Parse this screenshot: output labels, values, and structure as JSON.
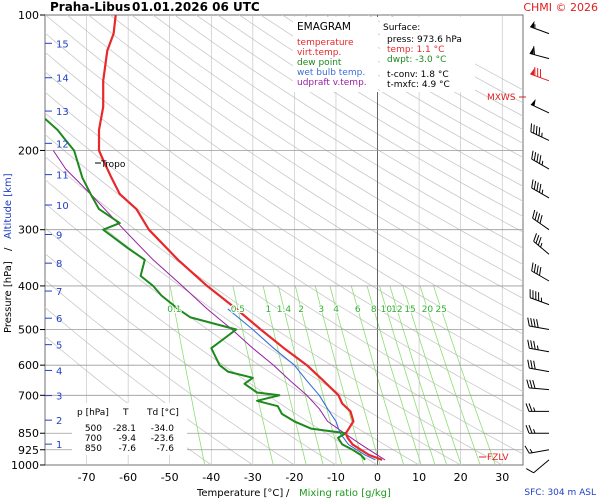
{
  "header": {
    "station": "Praha-Libus",
    "time": "01.01.2026 06 UTC",
    "credit": "CHMI © 2026"
  },
  "legend": {
    "title": "EMAGRAM",
    "items": [
      {
        "label": "temperature",
        "color": "#e8282a"
      },
      {
        "label": "virt.temp.",
        "color": "#e8282a"
      },
      {
        "label": "dew point",
        "color": "#1c8a1c"
      },
      {
        "label": "wet bulb temp.",
        "color": "#3a6fd8"
      },
      {
        "label": "udpraft v.temp.",
        "color": "#9a1ea5"
      }
    ]
  },
  "surface": {
    "title": "Surface:",
    "press": "press: 973.6 hPa",
    "temp": "temp: 1.1 °C",
    "dwpt": "dwpt: -3.0 °C",
    "tconv": "t-conv: 1.8 °C",
    "tmxfc": "t-mxfc: 4.9 °C"
  },
  "table": {
    "headers": [
      "p [hPa]",
      "T",
      "Td [°C]"
    ],
    "rows": [
      [
        "500",
        "-28.1",
        "-34.0"
      ],
      [
        "700",
        "-9.4",
        "-23.6"
      ],
      [
        "850",
        "-7.6",
        "-7.6"
      ]
    ]
  },
  "annotations": {
    "tropo": "Tropo",
    "mxws": "MXWS",
    "fzlv": "FZLV",
    "sfc": "SFC: 304 m ASL"
  },
  "axes": {
    "xlabel_temp": "Temperature [°C]",
    "xlabel_sep": "/",
    "xlabel_mix": "Mixing ratio [g/kg]",
    "ylabel_pressure": "Pressure [hPa]",
    "ylabel_sep": "/",
    "ylabel_alt": "Altitude [km]"
  },
  "colors": {
    "temp": "#e8282a",
    "dew": "#1c8a1c",
    "wetbulb": "#3a6fd8",
    "parcel": "#9a1ea5",
    "mixing": "#8fdd74",
    "dryadiabat": "#c9c9c9",
    "isobar": "#9a9a9a",
    "altitude": "#2040c8",
    "annot": "#e02020"
  },
  "chart_data": {
    "type": "line",
    "title": "EMAGRAM",
    "xlim": [
      -80,
      35
    ],
    "ylim_hPa": [
      1000,
      100
    ],
    "xlabel": "Temperature [°C] / Mixing ratio [g/kg]",
    "ylabel": "Pressure [hPa] / Altitude [km]",
    "x_ticks": [
      -70,
      -60,
      -50,
      -40,
      -30,
      -20,
      -10,
      0,
      10,
      20,
      30
    ],
    "pressure_ticks": [
      100,
      200,
      300,
      400,
      500,
      600,
      700,
      850,
      925,
      1000
    ],
    "altitude_ticks_km": [
      1,
      2,
      3,
      4,
      5,
      6,
      7,
      8,
      9,
      10,
      11,
      12,
      13,
      14,
      15
    ],
    "mixing_ratio_labels": [
      "0.1",
      "0.5",
      "1",
      "1.4",
      "2",
      "3",
      "4",
      "6",
      "8",
      "10",
      "12",
      "15",
      "20",
      "25"
    ],
    "mixing_ratio_values": [
      0.1,
      0.5,
      1,
      1.4,
      2,
      3,
      4,
      6,
      8,
      10,
      12,
      15,
      20,
      25
    ],
    "series": [
      {
        "name": "temperature",
        "points": [
          [
            974,
            1.1
          ],
          [
            950,
            -2
          ],
          [
            925,
            -4
          ],
          [
            900,
            -6
          ],
          [
            870,
            -7.2
          ],
          [
            850,
            -7.6
          ],
          [
            800,
            -5.8
          ],
          [
            760,
            -6.5
          ],
          [
            730,
            -8.5
          ],
          [
            700,
            -9.4
          ],
          [
            650,
            -13
          ],
          [
            600,
            -17
          ],
          [
            550,
            -22.5
          ],
          [
            500,
            -28.1
          ],
          [
            450,
            -34
          ],
          [
            400,
            -41
          ],
          [
            350,
            -48
          ],
          [
            300,
            -55
          ],
          [
            270,
            -58
          ],
          [
            250,
            -62
          ],
          [
            230,
            -64
          ],
          [
            210,
            -66
          ],
          [
            200,
            -67
          ],
          [
            180,
            -67
          ],
          [
            160,
            -66
          ],
          [
            140,
            -66
          ],
          [
            120,
            -65
          ],
          [
            110,
            -63.5
          ],
          [
            100,
            -63
          ]
        ]
      },
      {
        "name": "dew point",
        "points": [
          [
            974,
            -3
          ],
          [
            950,
            -4
          ],
          [
            925,
            -6
          ],
          [
            900,
            -8.5
          ],
          [
            870,
            -9.5
          ],
          [
            850,
            -7.6
          ],
          [
            830,
            -16
          ],
          [
            800,
            -20
          ],
          [
            770,
            -23
          ],
          [
            740,
            -24
          ],
          [
            720,
            -29
          ],
          [
            700,
            -23.6
          ],
          [
            690,
            -29
          ],
          [
            680,
            -30
          ],
          [
            660,
            -32
          ],
          [
            640,
            -30
          ],
          [
            620,
            -36
          ],
          [
            600,
            -38
          ],
          [
            550,
            -40
          ],
          [
            500,
            -34
          ],
          [
            470,
            -45
          ],
          [
            450,
            -48
          ],
          [
            420,
            -52
          ],
          [
            400,
            -54
          ],
          [
            380,
            -57
          ],
          [
            350,
            -56
          ],
          [
            330,
            -60
          ],
          [
            300,
            -66
          ],
          [
            290,
            -62
          ],
          [
            270,
            -67
          ],
          [
            250,
            -69
          ],
          [
            230,
            -71
          ],
          [
            200,
            -73
          ],
          [
            190,
            -75
          ],
          [
            180,
            -77
          ],
          [
            170,
            -80
          ]
        ]
      },
      {
        "name": "wet bulb temp.",
        "points": [
          [
            974,
            -0.5
          ],
          [
            950,
            -3
          ],
          [
            925,
            -5
          ],
          [
            900,
            -7
          ],
          [
            850,
            -9
          ],
          [
            800,
            -10
          ],
          [
            750,
            -12
          ],
          [
            700,
            -14
          ],
          [
            650,
            -17
          ],
          [
            600,
            -20
          ],
          [
            550,
            -25
          ],
          [
            500,
            -30
          ],
          [
            450,
            -36
          ]
        ]
      },
      {
        "name": "udpraft v.temp.",
        "points": [
          [
            974,
            1.8
          ],
          [
            925,
            -2
          ],
          [
            900,
            -4
          ],
          [
            850,
            -8
          ],
          [
            800,
            -12
          ],
          [
            750,
            -14
          ],
          [
            700,
            -17
          ],
          [
            650,
            -21
          ],
          [
            600,
            -25
          ],
          [
            550,
            -30
          ],
          [
            500,
            -35
          ],
          [
            450,
            -41
          ],
          [
            400,
            -47
          ],
          [
            350,
            -54
          ],
          [
            300,
            -61
          ],
          [
            250,
            -69
          ],
          [
            220,
            -75
          ],
          [
            200,
            -78
          ]
        ]
      }
    ],
    "wind_barbs": [
      {
        "hPa": 110,
        "dir_deg": 290,
        "speed_kt": 55
      },
      {
        "hPa": 125,
        "dir_deg": 285,
        "speed_kt": 60
      },
      {
        "hPa": 140,
        "dir_deg": 290,
        "speed_kt": 80
      },
      {
        "hPa": 165,
        "dir_deg": 295,
        "speed_kt": 50
      },
      {
        "hPa": 190,
        "dir_deg": 295,
        "speed_kt": 45
      },
      {
        "hPa": 220,
        "dir_deg": 300,
        "speed_kt": 45
      },
      {
        "hPa": 255,
        "dir_deg": 300,
        "speed_kt": 45
      },
      {
        "hPa": 300,
        "dir_deg": 305,
        "speed_kt": 40
      },
      {
        "hPa": 340,
        "dir_deg": 310,
        "speed_kt": 35
      },
      {
        "hPa": 390,
        "dir_deg": 300,
        "speed_kt": 40
      },
      {
        "hPa": 440,
        "dir_deg": 290,
        "speed_kt": 45
      },
      {
        "hPa": 500,
        "dir_deg": 280,
        "speed_kt": 40
      },
      {
        "hPa": 560,
        "dir_deg": 280,
        "speed_kt": 35
      },
      {
        "hPa": 620,
        "dir_deg": 280,
        "speed_kt": 30
      },
      {
        "hPa": 680,
        "dir_deg": 275,
        "speed_kt": 30
      },
      {
        "hPa": 760,
        "dir_deg": 270,
        "speed_kt": 25
      },
      {
        "hPa": 850,
        "dir_deg": 270,
        "speed_kt": 25
      },
      {
        "hPa": 925,
        "dir_deg": 260,
        "speed_kt": 15
      },
      {
        "hPa": 974,
        "dir_deg": 230,
        "speed_kt": 10
      }
    ],
    "levels": {
      "tropopause_hPa": 205,
      "mxws_hPa": 140,
      "fzlv_hPa": 974
    }
  }
}
